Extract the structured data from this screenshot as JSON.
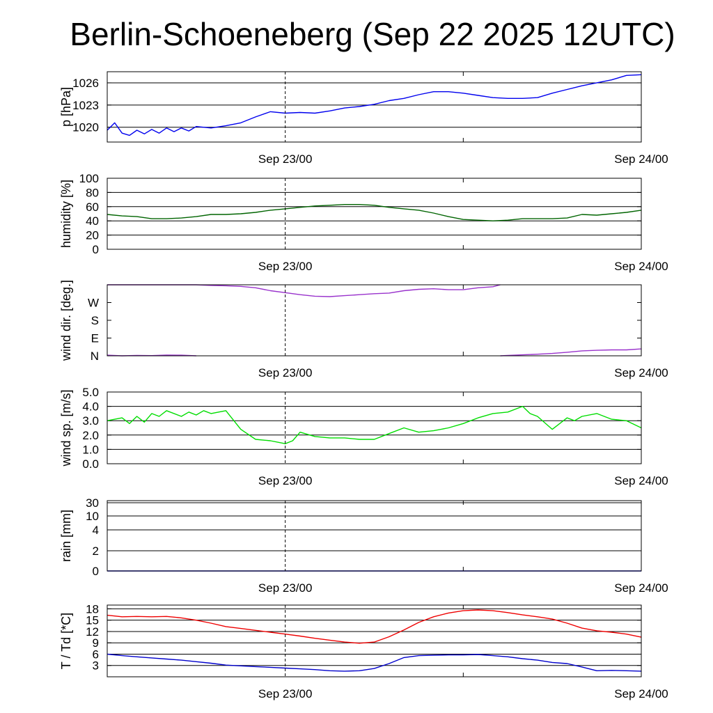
{
  "title": "Berlin-Schoeneberg (Sep 22 2025 12UTC)",
  "chart_data": [
    {
      "type": "line",
      "ylabel": "p [hPa]",
      "x_ticks": [
        "Sep 23/00",
        "Sep 24/00"
      ],
      "ylim": [
        1018,
        1027.5
      ],
      "yticks": [
        1020,
        1023,
        1026
      ],
      "ytick_labels": [
        "1020",
        "1023",
        "1026"
      ],
      "grid_lines": [
        1020,
        1023,
        1026
      ],
      "series": [
        {
          "color": "#0000ee",
          "x": [
            0,
            0.5,
            1,
            1.5,
            2,
            2.5,
            3,
            3.5,
            4,
            4.5,
            5,
            5.5,
            6,
            7,
            8,
            9,
            10,
            11,
            12,
            13,
            14,
            15,
            16,
            17,
            18,
            19,
            20,
            21,
            22,
            23,
            24,
            25,
            26,
            27,
            28,
            29,
            30,
            31,
            32,
            33,
            34,
            35,
            36
          ],
          "values": [
            1019.6,
            1020.6,
            1019.2,
            1018.9,
            1019.6,
            1019.1,
            1019.7,
            1019.2,
            1019.9,
            1019.4,
            1019.9,
            1019.5,
            1020.1,
            1019.9,
            1020.2,
            1020.6,
            1021.4,
            1022.1,
            1021.9,
            1022.0,
            1021.9,
            1022.2,
            1022.6,
            1022.8,
            1023.1,
            1023.6,
            1023.9,
            1024.4,
            1024.8,
            1024.8,
            1024.6,
            1024.3,
            1024.0,
            1023.9,
            1023.9,
            1024.0,
            1024.6,
            1025.1,
            1025.6,
            1026.0,
            1026.4,
            1027.0,
            1027.1
          ]
        }
      ]
    },
    {
      "type": "line",
      "ylabel": "humidity [%]",
      "x_ticks": [
        "Sep 23/00",
        "Sep 24/00"
      ],
      "ylim": [
        0,
        100
      ],
      "yticks": [
        0,
        20,
        40,
        60,
        80,
        100
      ],
      "ytick_labels": [
        "0",
        "20",
        "40",
        "60",
        "80",
        "100"
      ],
      "grid_lines": [
        20,
        40,
        60,
        80
      ],
      "series": [
        {
          "color": "#006400",
          "x": [
            0,
            1,
            2,
            3,
            4,
            5,
            6,
            7,
            8,
            9,
            10,
            11,
            12,
            13,
            14,
            15,
            16,
            17,
            18,
            19,
            20,
            21,
            22,
            23,
            24,
            25,
            26,
            27,
            28,
            29,
            30,
            31,
            32,
            33,
            34,
            35,
            36
          ],
          "values": [
            49,
            47,
            46,
            43,
            43,
            44,
            46,
            49,
            49,
            50,
            52,
            55,
            57,
            59,
            61,
            62,
            63,
            63,
            62,
            59,
            57,
            55,
            51,
            46,
            42,
            41,
            40,
            41,
            43,
            43,
            43,
            44,
            49,
            48,
            50,
            52,
            55
          ]
        }
      ]
    },
    {
      "type": "line",
      "ylabel": "wind dir. [deg.]",
      "x_ticks": [
        "Sep 23/00",
        "Sep 24/00"
      ],
      "ylim": [
        0,
        360
      ],
      "yticks": [
        0,
        90,
        180,
        270
      ],
      "ytick_labels": [
        "N",
        "E",
        "S",
        "W"
      ],
      "grid_lines": [],
      "series": [
        {
          "color": "#9932cc",
          "x": [
            0,
            1,
            6,
            7,
            8,
            9,
            10,
            11,
            12,
            13,
            14,
            15,
            16,
            17,
            18,
            19,
            20,
            21,
            22,
            23,
            24,
            25,
            26,
            26.5
          ],
          "values": [
            360,
            360,
            360,
            357,
            355,
            352,
            345,
            330,
            320,
            310,
            302,
            300,
            305,
            310,
            315,
            318,
            330,
            337,
            340,
            335,
            335,
            345,
            350,
            360
          ]
        },
        {
          "color": "#9932cc",
          "x": [
            0,
            1,
            2,
            3,
            4,
            5,
            6
          ],
          "values": [
            3,
            0,
            2,
            1,
            4,
            3,
            0
          ]
        },
        {
          "color": "#9932cc",
          "x": [
            26.5,
            27,
            28,
            29,
            30,
            31,
            32,
            33,
            34,
            35,
            36
          ],
          "values": [
            0,
            2,
            5,
            8,
            12,
            18,
            25,
            28,
            30,
            30,
            35
          ]
        }
      ]
    },
    {
      "type": "line",
      "ylabel": "wind sp. [m/s]",
      "x_ticks": [
        "Sep 23/00",
        "Sep 24/00"
      ],
      "ylim": [
        0,
        5
      ],
      "yticks": [
        0,
        1,
        2,
        3,
        4,
        5
      ],
      "ytick_labels": [
        "0.0",
        "1.0",
        "2.0",
        "3.0",
        "4.0",
        "5.0"
      ],
      "grid_lines": [
        1,
        2,
        3,
        4
      ],
      "series": [
        {
          "color": "#00dd00",
          "x": [
            0,
            1,
            1.5,
            2,
            2.5,
            3,
            3.5,
            4,
            5,
            5.5,
            6,
            6.5,
            7,
            8,
            9,
            10,
            11,
            12,
            12.5,
            13,
            14,
            15,
            16,
            17,
            18,
            19,
            20,
            21,
            22,
            23,
            24,
            25,
            26,
            27,
            28,
            28.5,
            29,
            30,
            31,
            31.5,
            32,
            33,
            34,
            35,
            36
          ],
          "values": [
            3.0,
            3.2,
            2.8,
            3.3,
            2.9,
            3.5,
            3.3,
            3.7,
            3.3,
            3.6,
            3.4,
            3.7,
            3.5,
            3.7,
            2.4,
            1.7,
            1.6,
            1.4,
            1.6,
            2.2,
            1.9,
            1.8,
            1.8,
            1.7,
            1.7,
            2.1,
            2.5,
            2.2,
            2.3,
            2.5,
            2.8,
            3.2,
            3.5,
            3.6,
            4.0,
            3.5,
            3.3,
            2.4,
            3.2,
            3.0,
            3.3,
            3.5,
            3.1,
            3.0,
            2.5
          ]
        }
      ]
    },
    {
      "type": "line",
      "ylabel": "rain [mm]",
      "x_ticks": [
        "Sep 23/00",
        "Sep 24/00"
      ],
      "ylim": [
        0,
        30
      ],
      "yticks": [
        0,
        2,
        4,
        10,
        30
      ],
      "ytick_labels": [
        "0",
        "2",
        "4",
        "10",
        "30"
      ],
      "grid_lines": [
        2,
        4,
        10,
        30
      ],
      "series": [
        {
          "color": "#0000cc",
          "x": [
            0,
            36
          ],
          "values": [
            0,
            0
          ]
        }
      ]
    },
    {
      "type": "line",
      "ylabel": "T / Td [*C]",
      "x_ticks": [
        "Sep 23/00",
        "Sep 24/00"
      ],
      "ylim": [
        0,
        19
      ],
      "yticks": [
        3,
        6,
        9,
        12,
        15,
        18
      ],
      "ytick_labels": [
        "3",
        "6",
        "9",
        "12",
        "15",
        "18"
      ],
      "grid_lines": [
        3,
        6,
        9,
        12,
        15,
        18
      ],
      "series": [
        {
          "color": "#ee0000",
          "x": [
            0,
            1,
            2,
            3,
            4,
            5,
            6,
            7,
            8,
            9,
            10,
            11,
            12,
            13,
            14,
            15,
            16,
            17,
            18,
            19,
            20,
            21,
            22,
            23,
            24,
            25,
            26,
            27,
            28,
            29,
            30,
            31,
            32,
            33,
            34,
            35,
            36
          ],
          "values": [
            16.3,
            15.9,
            16.0,
            15.9,
            16.0,
            15.6,
            15.0,
            14.2,
            13.3,
            12.8,
            12.3,
            11.8,
            11.3,
            10.8,
            10.2,
            9.7,
            9.2,
            8.9,
            9.2,
            10.6,
            12.4,
            14.4,
            15.9,
            16.9,
            17.5,
            17.7,
            17.5,
            17.0,
            16.4,
            15.9,
            15.3,
            14.2,
            12.9,
            12.2,
            11.8,
            11.3,
            10.5
          ]
        },
        {
          "color": "#0000cc",
          "x": [
            0,
            1,
            2,
            3,
            4,
            5,
            6,
            7,
            8,
            9,
            10,
            11,
            12,
            13,
            14,
            15,
            16,
            17,
            18,
            19,
            20,
            21,
            22,
            23,
            24,
            25,
            26,
            27,
            28,
            29,
            30,
            31,
            32,
            33,
            34,
            35,
            36
          ],
          "values": [
            6.0,
            5.6,
            5.3,
            5.0,
            4.7,
            4.4,
            4.0,
            3.6,
            3.1,
            2.9,
            2.7,
            2.5,
            2.3,
            2.1,
            1.9,
            1.6,
            1.5,
            1.6,
            2.2,
            3.5,
            5.1,
            5.6,
            5.7,
            5.8,
            5.8,
            5.9,
            5.6,
            5.3,
            4.8,
            4.4,
            3.8,
            3.5,
            2.6,
            1.6,
            1.7,
            1.6,
            1.5
          ]
        }
      ]
    }
  ]
}
